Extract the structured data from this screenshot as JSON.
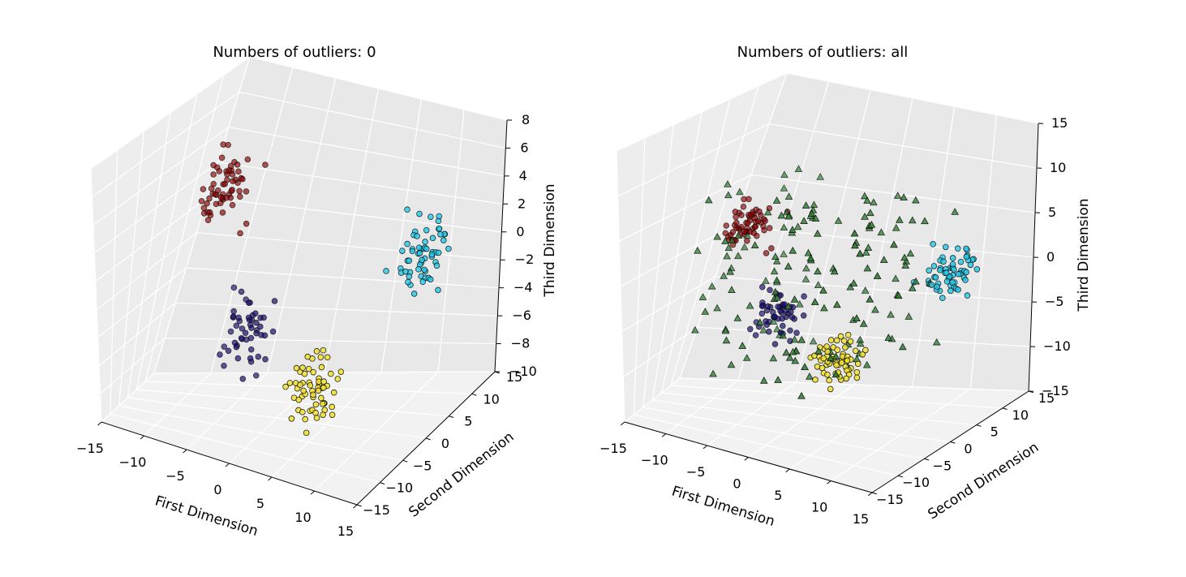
{
  "chart_data": [
    {
      "type": "scatter3d",
      "title": "Numbers of outliers: 0",
      "xlabel": "First Dimension",
      "ylabel": "Second Dimension",
      "zlabel": "Third Dimension",
      "xlim": [
        -15,
        15
      ],
      "ylim": [
        -15,
        15
      ],
      "zlim": [
        -10,
        8
      ],
      "xticks": [
        -15,
        -10,
        -5,
        0,
        5,
        10,
        15
      ],
      "yticks": [
        -15,
        -10,
        -5,
        0,
        5,
        10,
        15
      ],
      "zticks": [
        -10,
        -8,
        -6,
        -4,
        -2,
        0,
        2,
        4,
        6,
        8
      ],
      "xtick_labels": [
        "−15",
        "−10",
        "−5",
        "0",
        "5",
        "10",
        "15"
      ],
      "ytick_labels": [
        "−15",
        "−10",
        "−5",
        "0",
        "5",
        "10",
        "15"
      ],
      "ztick_labels": [
        "−10",
        "−8",
        "−6",
        "−4",
        "−2",
        "0",
        "2",
        "4",
        "6",
        "8"
      ],
      "grid": true,
      "series": [
        {
          "color": "#8b0000",
          "marker": "circle",
          "center": [
            -10,
            5,
            3
          ],
          "spread": [
            1.2,
            1.2,
            1.2
          ],
          "count": 60,
          "seed": 11
        },
        {
          "color": "#22c8e8",
          "marker": "circle",
          "center": [
            10,
            8,
            0
          ],
          "spread": [
            1.2,
            1.2,
            1.2
          ],
          "count": 60,
          "seed": 23
        },
        {
          "color": "#1a1070",
          "marker": "circle",
          "center": [
            -5,
            5,
            -6
          ],
          "spread": [
            1.2,
            1.2,
            1.2
          ],
          "count": 50,
          "seed": 37
        },
        {
          "color": "#f0e030",
          "marker": "circle",
          "center": [
            5,
            -4,
            -6.5
          ],
          "spread": [
            1.2,
            1.2,
            1.2
          ],
          "count": 60,
          "seed": 41
        }
      ]
    },
    {
      "type": "scatter3d",
      "title": "Numbers of outliers: all",
      "xlabel": "First Dimension",
      "ylabel": "Second Dimension",
      "zlabel": "Third Dimension",
      "xlim": [
        -15,
        15
      ],
      "ylim": [
        -15,
        15
      ],
      "zlim": [
        -15,
        15
      ],
      "xticks": [
        -15,
        -10,
        -5,
        0,
        5,
        10,
        15
      ],
      "yticks": [
        -15,
        -10,
        -5,
        0,
        5,
        10,
        15
      ],
      "zticks": [
        -15,
        -10,
        -5,
        0,
        5,
        10,
        15
      ],
      "xtick_labels": [
        "−15",
        "−10",
        "−5",
        "0",
        "5",
        "10",
        "15"
      ],
      "ytick_labels": [
        "−15",
        "−10",
        "−5",
        "0",
        "5",
        "10",
        "15"
      ],
      "ztick_labels": [
        "−15",
        "−10",
        "−5",
        "0",
        "5",
        "10",
        "15"
      ],
      "grid": true,
      "series": [
        {
          "color": "#8b0000",
          "marker": "circle",
          "center": [
            -10,
            5,
            3
          ],
          "spread": [
            1.2,
            1.2,
            1.2
          ],
          "count": 60,
          "seed": 11
        },
        {
          "color": "#22c8e8",
          "marker": "circle",
          "center": [
            10,
            8,
            0
          ],
          "spread": [
            1.2,
            1.2,
            1.2
          ],
          "count": 60,
          "seed": 23
        },
        {
          "color": "#1a1070",
          "marker": "circle",
          "center": [
            -5,
            5,
            -6
          ],
          "spread": [
            1.2,
            1.2,
            1.2
          ],
          "count": 50,
          "seed": 37
        },
        {
          "color": "#f0e030",
          "marker": "circle",
          "center": [
            5,
            -4,
            -6.5
          ],
          "spread": [
            1.2,
            1.2,
            1.2
          ],
          "count": 60,
          "seed": 41
        },
        {
          "color": "#2e7d32",
          "marker": "triangle",
          "uniform_range": [
            -10,
            10
          ],
          "count": 170,
          "seed": 53
        }
      ]
    }
  ]
}
